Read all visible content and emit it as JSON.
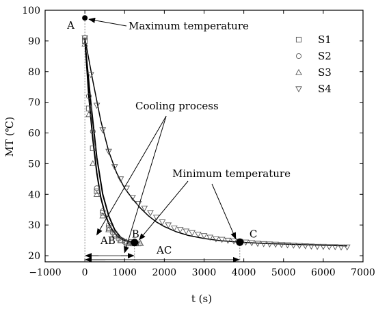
{
  "chart_data": {
    "type": "scatter",
    "xlabel": "t (s)",
    "ylabel": "MT (℃)",
    "xlim": [
      -1000,
      7000
    ],
    "ylim": [
      18,
      100
    ],
    "xticks": [
      -1000,
      0,
      1000,
      2000,
      3000,
      4000,
      5000,
      6000,
      7000
    ],
    "yticks": [
      20,
      30,
      40,
      50,
      60,
      70,
      80,
      90,
      100
    ],
    "grid": false,
    "legend": "top-right",
    "series": [
      {
        "name": "S1",
        "marker": "square",
        "points": [
          [
            0,
            90
          ],
          [
            100,
            68
          ],
          [
            200,
            55
          ],
          [
            300,
            41
          ],
          [
            450,
            34
          ],
          [
            600,
            29
          ],
          [
            750,
            27
          ],
          [
            900,
            25
          ],
          [
            1050,
            24
          ],
          [
            1200,
            24
          ],
          [
            1350,
            24
          ]
        ]
      },
      {
        "name": "S2",
        "marker": "circle",
        "points": [
          [
            0,
            91
          ],
          [
            100,
            72
          ],
          [
            200,
            60.5
          ],
          [
            300,
            42
          ],
          [
            450,
            34.5
          ],
          [
            600,
            30
          ],
          [
            700,
            27.5
          ],
          [
            850,
            25.5
          ],
          [
            1000,
            24.5
          ],
          [
            1150,
            24.5
          ],
          [
            1300,
            24
          ]
        ]
      },
      {
        "name": "S3",
        "marker": "triangle-up",
        "points": [
          [
            0,
            89
          ],
          [
            100,
            66
          ],
          [
            200,
            50
          ],
          [
            300,
            40
          ],
          [
            450,
            33
          ],
          [
            600,
            28.5
          ],
          [
            750,
            26.5
          ],
          [
            900,
            25
          ],
          [
            1050,
            24.5
          ],
          [
            1200,
            24
          ],
          [
            1400,
            24
          ]
        ]
      },
      {
        "name": "S4",
        "marker": "triangle-down",
        "points": [
          [
            0,
            91
          ],
          [
            150,
            79
          ],
          [
            300,
            69
          ],
          [
            450,
            61
          ],
          [
            600,
            54
          ],
          [
            750,
            49
          ],
          [
            900,
            45
          ],
          [
            1050,
            42
          ],
          [
            1200,
            39
          ],
          [
            1350,
            37
          ],
          [
            1500,
            35.5
          ],
          [
            1650,
            34
          ],
          [
            1800,
            32.5
          ],
          [
            1950,
            31
          ],
          [
            2100,
            30
          ],
          [
            2250,
            29
          ],
          [
            2400,
            28.5
          ],
          [
            2550,
            28
          ],
          [
            2700,
            27.5
          ],
          [
            2850,
            27
          ],
          [
            3000,
            26.5
          ],
          [
            3150,
            26
          ],
          [
            3300,
            25.5
          ],
          [
            3450,
            25.3
          ],
          [
            3600,
            25
          ],
          [
            3750,
            24.8
          ],
          [
            3900,
            24.6
          ],
          [
            4050,
            24.4
          ],
          [
            4200,
            24.2
          ],
          [
            4350,
            24
          ],
          [
            4500,
            23.9
          ],
          [
            4650,
            23.8
          ],
          [
            4800,
            23.7
          ],
          [
            4950,
            23.6
          ],
          [
            5100,
            23.5
          ],
          [
            5250,
            23.4
          ],
          [
            5400,
            23.3
          ],
          [
            5550,
            23.2
          ],
          [
            5700,
            23.1
          ],
          [
            5850,
            23
          ],
          [
            6000,
            23
          ],
          [
            6150,
            22.9
          ],
          [
            6300,
            22.9
          ],
          [
            6450,
            22.8
          ],
          [
            6600,
            22.8
          ]
        ]
      }
    ],
    "fit_curves": [
      {
        "points": [
          [
            0,
            91
          ],
          [
            100,
            72
          ],
          [
            200,
            58
          ],
          [
            300,
            47
          ],
          [
            400,
            39
          ],
          [
            500,
            34
          ],
          [
            600,
            30.5
          ],
          [
            700,
            28.2
          ],
          [
            800,
            26.6
          ],
          [
            900,
            25.6
          ],
          [
            1000,
            25
          ],
          [
            1100,
            24.6
          ],
          [
            1200,
            24.4
          ],
          [
            1300,
            24.3
          ]
        ]
      },
      {
        "points": [
          [
            0,
            90
          ],
          [
            150,
            70
          ],
          [
            300,
            52
          ],
          [
            450,
            40
          ],
          [
            600,
            33
          ],
          [
            750,
            28.5
          ],
          [
            900,
            26
          ],
          [
            1050,
            24.9
          ],
          [
            1200,
            24.4
          ],
          [
            1350,
            24.2
          ]
        ]
      },
      {
        "points": [
          [
            0,
            91
          ],
          [
            200,
            77
          ],
          [
            400,
            64
          ],
          [
            600,
            54
          ],
          [
            800,
            47
          ],
          [
            1000,
            42
          ],
          [
            1200,
            38.5
          ],
          [
            1400,
            35.5
          ],
          [
            1600,
            33
          ],
          [
            1800,
            31
          ],
          [
            2000,
            29.5
          ],
          [
            2300,
            27.8
          ],
          [
            2600,
            26.6
          ],
          [
            3000,
            25.6
          ],
          [
            3400,
            24.9
          ],
          [
            3900,
            24.4
          ],
          [
            4500,
            24
          ],
          [
            5500,
            23.6
          ],
          [
            6600,
            23.2
          ]
        ]
      }
    ],
    "highlight_points": [
      {
        "label": "A",
        "x": 0,
        "y": 97.5
      },
      {
        "label": "B",
        "x": 1250,
        "y": 24.3
      },
      {
        "label": "C",
        "x": 3900,
        "y": 24.4
      }
    ],
    "annotations": {
      "max_temp": "Maximum temperature",
      "cooling": "Cooling process",
      "min_temp": "Minimum temperature",
      "ab": "AB",
      "ac": "AC"
    }
  }
}
